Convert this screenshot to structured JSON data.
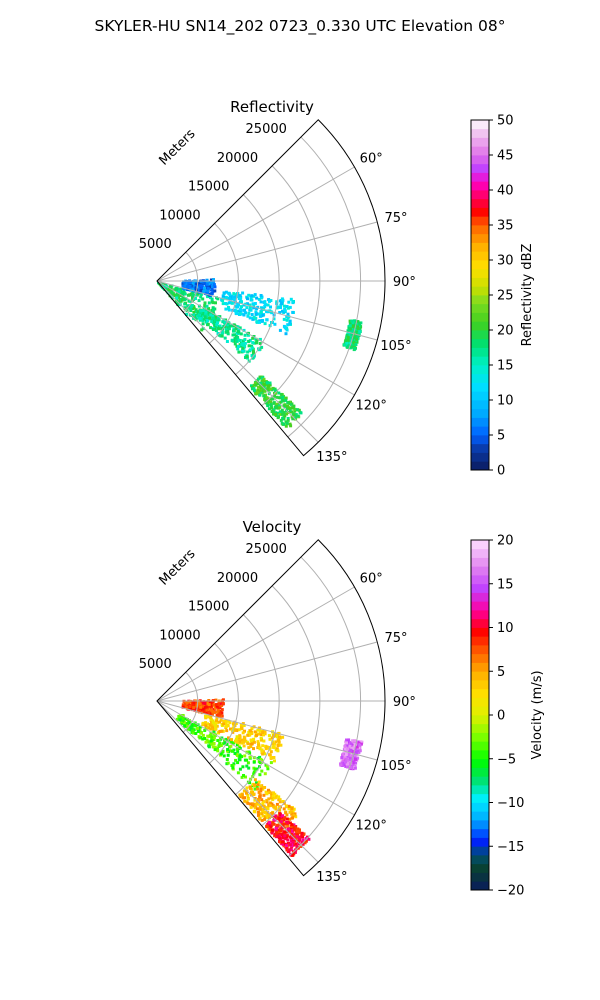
{
  "figure": {
    "suptitle": "SKYLER-HU  SN14_202  0723_0.330 UTC Elevation 08°"
  },
  "chart_data": [
    {
      "type": "heatmap",
      "projection": "polar-sector",
      "title": "Reflectivity",
      "radial_label": "Meters",
      "radial_ticks": [
        "5000",
        "10000",
        "15000",
        "20000",
        "25000"
      ],
      "radial_tick_values": [
        5000,
        10000,
        15000,
        20000,
        25000
      ],
      "radial_max": 28000,
      "angle_range_deg": [
        45,
        140
      ],
      "angle_ticks": [
        "60°",
        "75°",
        "90°",
        "105°",
        "120°",
        "135°"
      ],
      "angle_tick_values": [
        60,
        75,
        90,
        105,
        120,
        135
      ],
      "grid": true,
      "colorbar": {
        "label": "Reflectivity dBZ",
        "range": [
          0,
          50
        ],
        "ticks": [
          "0",
          "5",
          "10",
          "15",
          "20",
          "25",
          "30",
          "35",
          "40",
          "45",
          "50"
        ],
        "tick_values": [
          0,
          5,
          10,
          15,
          20,
          25,
          30,
          35,
          40,
          45,
          50
        ]
      },
      "echo_regions": [
        {
          "az": [
            104,
            139
          ],
          "range_m": [
            0,
            8000
          ],
          "value": 18
        },
        {
          "az": [
            119,
            131
          ],
          "range_m": [
            6000,
            15000
          ],
          "value": 17
        },
        {
          "az": [
            97,
            112
          ],
          "range_m": [
            8000,
            17000
          ],
          "value": 12
        },
        {
          "az": [
            87,
            104
          ],
          "range_m": [
            3000,
            7000
          ],
          "value": 6
        },
        {
          "az": [
            132,
            139
          ],
          "range_m": [
            17000,
            24000
          ],
          "value": 20
        },
        {
          "az": [
            101,
            109
          ],
          "range_m": [
            24000,
            25500
          ],
          "value": 18
        }
      ]
    },
    {
      "type": "heatmap",
      "projection": "polar-sector",
      "title": "Velocity",
      "radial_label": "Meters",
      "radial_ticks": [
        "5000",
        "10000",
        "15000",
        "20000",
        "25000"
      ],
      "radial_tick_values": [
        5000,
        10000,
        15000,
        20000,
        25000
      ],
      "radial_max": 28000,
      "angle_range_deg": [
        45,
        140
      ],
      "angle_ticks": [
        "60°",
        "75°",
        "90°",
        "105°",
        "120°",
        "135°"
      ],
      "angle_tick_values": [
        60,
        75,
        90,
        105,
        120,
        135
      ],
      "grid": true,
      "colorbar": {
        "label": "Velocity (m/s)",
        "range": [
          -20,
          20
        ],
        "ticks": [
          "−20",
          "−15",
          "−10",
          "−5",
          "0",
          "5",
          "10",
          "15"
        ],
        "tick_values": [
          -20,
          -15,
          -10,
          -5,
          0,
          5,
          10,
          15
        ],
        "top_tick": "20"
      },
      "echo_regions": [
        {
          "az": [
            118,
            132
          ],
          "range_m": [
            3000,
            16000
          ],
          "value": -4
        },
        {
          "az": [
            104,
            117
          ],
          "range_m": [
            6000,
            16000
          ],
          "value": 3
        },
        {
          "az": [
            87,
            103
          ],
          "range_m": [
            3000,
            8000
          ],
          "value": 8
        },
        {
          "az": [
            128,
            139
          ],
          "range_m": [
            15000,
            22000
          ],
          "value": 4
        },
        {
          "az": [
            132,
            139
          ],
          "range_m": [
            20000,
            25000
          ],
          "value": 10
        },
        {
          "az": [
            101,
            109
          ],
          "range_m": [
            23500,
            25500
          ],
          "value": 16
        }
      ]
    }
  ]
}
